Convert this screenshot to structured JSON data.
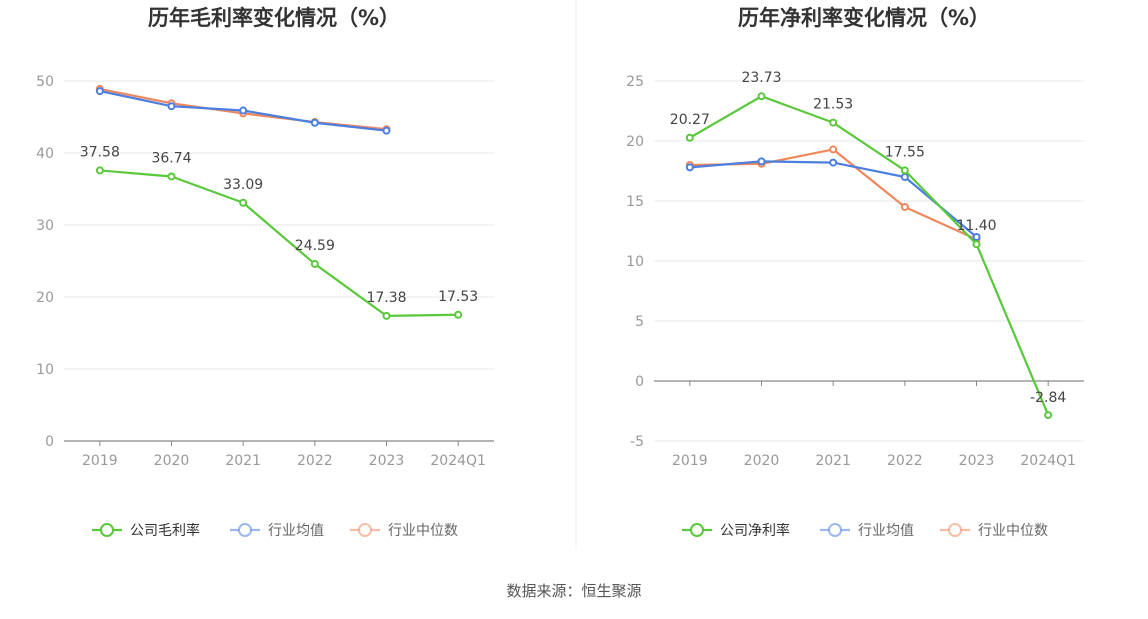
{
  "source": "数据来源：恒生聚源",
  "colors": {
    "company": "#5ac83b",
    "industry_avg": "#4a7fe0",
    "industry_median": "#f0875c"
  },
  "chart_data": [
    {
      "type": "line",
      "title": "历年毛利率变化情况（%）",
      "categories": [
        "2019",
        "2020",
        "2021",
        "2022",
        "2023",
        "2024Q1"
      ],
      "ylim": [
        0,
        50
      ],
      "yticks": [
        0,
        10,
        20,
        30,
        40,
        50
      ],
      "grid": true,
      "legend_position": "bottom",
      "series": [
        {
          "name": "公司毛利率",
          "key": "company",
          "values": [
            37.58,
            36.74,
            33.09,
            24.59,
            17.38,
            17.53
          ],
          "labels": [
            "37.58",
            "36.74",
            "33.09",
            "24.59",
            "17.38",
            "17.53"
          ]
        },
        {
          "name": "行业均值",
          "key": "industry_avg",
          "values": [
            48.6,
            46.5,
            45.9,
            44.2,
            43.1,
            null
          ]
        },
        {
          "name": "行业中位数",
          "key": "industry_median",
          "values": [
            48.9,
            46.9,
            45.5,
            44.3,
            43.3,
            null
          ]
        }
      ]
    },
    {
      "type": "line",
      "title": "历年净利率变化情况（%）",
      "categories": [
        "2019",
        "2020",
        "2021",
        "2022",
        "2023",
        "2024Q1"
      ],
      "ylim": [
        -5,
        25
      ],
      "yticks": [
        -5,
        0,
        5,
        10,
        15,
        20,
        25
      ],
      "grid": true,
      "legend_position": "bottom",
      "series": [
        {
          "name": "公司净利率",
          "key": "company",
          "values": [
            20.27,
            23.73,
            21.53,
            17.55,
            11.4,
            -2.84
          ],
          "labels": [
            "20.27",
            "23.73",
            "21.53",
            "17.55",
            "11.40",
            "-2.84"
          ]
        },
        {
          "name": "行业均值",
          "key": "industry_avg",
          "values": [
            17.8,
            18.3,
            18.2,
            17.0,
            12.0,
            null
          ]
        },
        {
          "name": "行业中位数",
          "key": "industry_median",
          "values": [
            18.0,
            18.1,
            19.3,
            14.5,
            11.8,
            null
          ]
        }
      ]
    }
  ]
}
